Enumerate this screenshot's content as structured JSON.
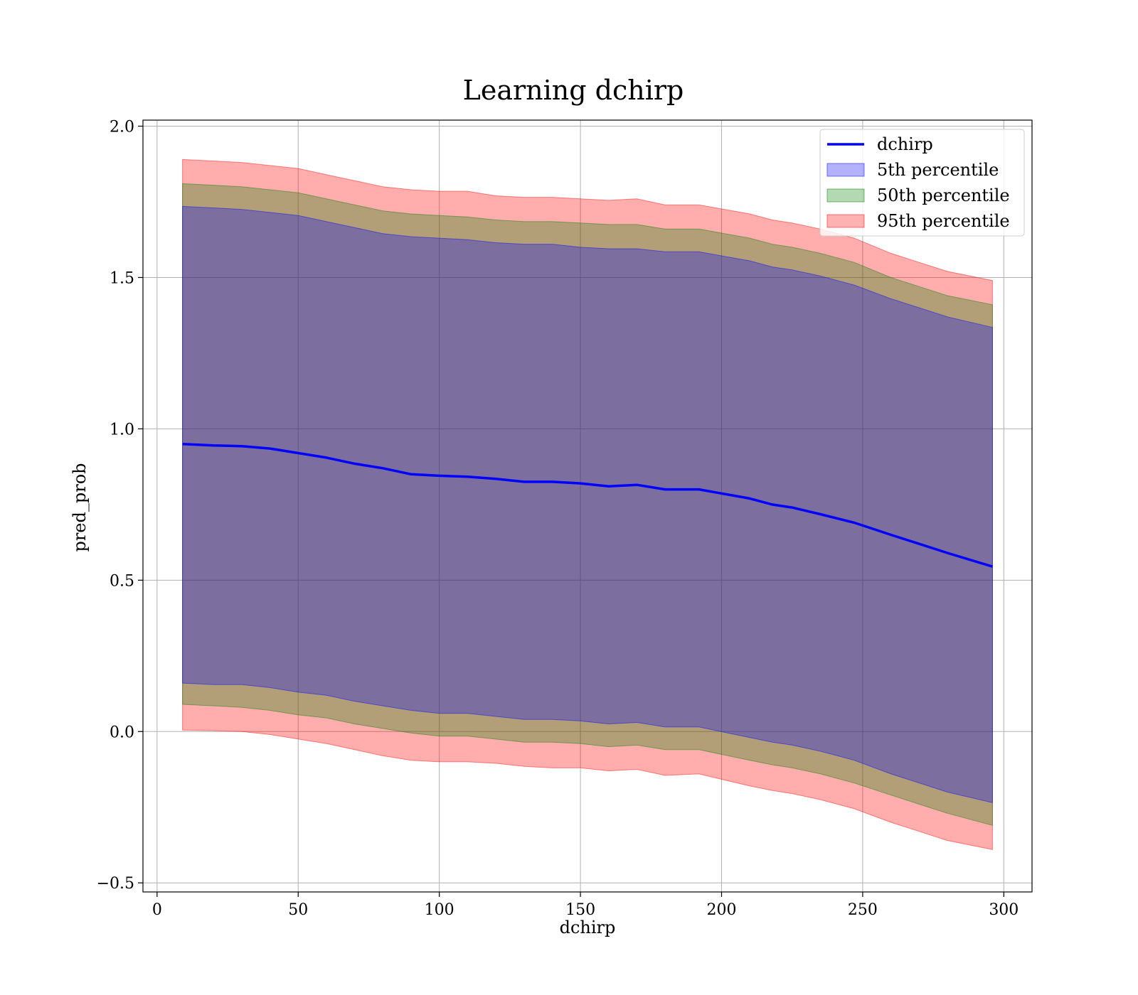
{
  "chart_data": {
    "type": "line",
    "title": "Learning dchirp",
    "xlabel": "dchirp",
    "ylabel": "pred_prob",
    "xlim": [
      -5,
      310
    ],
    "ylim": [
      -0.53,
      2.02
    ],
    "xticks": [
      0,
      50,
      100,
      150,
      200,
      250,
      300
    ],
    "xtick_labels": [
      "0",
      "50",
      "100",
      "150",
      "200",
      "250",
      "300"
    ],
    "yticks": [
      -0.5,
      0.0,
      0.5,
      1.0,
      1.5,
      2.0
    ],
    "ytick_labels": [
      "−0.5",
      "0.0",
      "0.5",
      "1.0",
      "1.5",
      "2.0"
    ],
    "grid": true,
    "legend_position": "top-right",
    "x": [
      9,
      20,
      30,
      40,
      50,
      60,
      70,
      80,
      90,
      100,
      110,
      120,
      130,
      140,
      150,
      160,
      170,
      180,
      192,
      210,
      218,
      225,
      235,
      247,
      260,
      270,
      280,
      296
    ],
    "line": {
      "name": "dchirp",
      "color": "#0000ff",
      "values": [
        0.95,
        0.945,
        0.943,
        0.935,
        0.92,
        0.905,
        0.885,
        0.87,
        0.85,
        0.845,
        0.842,
        0.835,
        0.825,
        0.825,
        0.82,
        0.81,
        0.815,
        0.8,
        0.8,
        0.77,
        0.75,
        0.74,
        0.718,
        0.69,
        0.65,
        0.62,
        0.59,
        0.545
      ]
    },
    "bands": [
      {
        "name": "95th percentile",
        "color": "#ff0000",
        "opacity": 0.32,
        "upper": [
          1.89,
          1.885,
          1.88,
          1.87,
          1.86,
          1.84,
          1.82,
          1.8,
          1.79,
          1.785,
          1.785,
          1.77,
          1.765,
          1.765,
          1.76,
          1.755,
          1.76,
          1.74,
          1.74,
          1.71,
          1.69,
          1.68,
          1.66,
          1.63,
          1.58,
          1.55,
          1.52,
          1.49
        ],
        "lower": [
          0.005,
          0.003,
          0.0,
          -0.01,
          -0.025,
          -0.04,
          -0.06,
          -0.08,
          -0.095,
          -0.1,
          -0.1,
          -0.105,
          -0.115,
          -0.12,
          -0.12,
          -0.13,
          -0.125,
          -0.145,
          -0.14,
          -0.18,
          -0.195,
          -0.205,
          -0.225,
          -0.255,
          -0.3,
          -0.33,
          -0.36,
          -0.39
        ]
      },
      {
        "name": "50th percentile",
        "color": "#008000",
        "opacity": 0.3,
        "upper": [
          1.81,
          1.805,
          1.8,
          1.79,
          1.78,
          1.76,
          1.74,
          1.72,
          1.71,
          1.705,
          1.7,
          1.69,
          1.685,
          1.685,
          1.68,
          1.675,
          1.675,
          1.66,
          1.66,
          1.63,
          1.61,
          1.6,
          1.58,
          1.55,
          1.5,
          1.47,
          1.44,
          1.41
        ],
        "lower": [
          0.09,
          0.085,
          0.08,
          0.07,
          0.055,
          0.045,
          0.025,
          0.01,
          -0.005,
          -0.015,
          -0.015,
          -0.025,
          -0.035,
          -0.035,
          -0.04,
          -0.05,
          -0.045,
          -0.06,
          -0.06,
          -0.095,
          -0.11,
          -0.12,
          -0.14,
          -0.17,
          -0.21,
          -0.24,
          -0.27,
          -0.31
        ]
      },
      {
        "name": "5th percentile",
        "color": "#0000ff",
        "opacity": 0.3,
        "upper": [
          1.735,
          1.73,
          1.725,
          1.715,
          1.705,
          1.685,
          1.665,
          1.645,
          1.635,
          1.63,
          1.625,
          1.615,
          1.61,
          1.61,
          1.6,
          1.595,
          1.595,
          1.585,
          1.585,
          1.555,
          1.535,
          1.525,
          1.505,
          1.475,
          1.43,
          1.4,
          1.37,
          1.335
        ],
        "lower": [
          0.16,
          0.155,
          0.155,
          0.145,
          0.13,
          0.12,
          0.1,
          0.085,
          0.07,
          0.06,
          0.06,
          0.05,
          0.04,
          0.04,
          0.035,
          0.025,
          0.03,
          0.015,
          0.015,
          -0.02,
          -0.035,
          -0.045,
          -0.065,
          -0.095,
          -0.14,
          -0.17,
          -0.2,
          -0.235
        ]
      }
    ],
    "legend": [
      {
        "label": "dchirp",
        "kind": "line",
        "color": "#0000ff"
      },
      {
        "label": "5th percentile",
        "kind": "patch",
        "color": "#0000ff"
      },
      {
        "label": "50th percentile",
        "kind": "patch",
        "color": "#008000"
      },
      {
        "label": "95th percentile",
        "kind": "patch",
        "color": "#ff0000"
      }
    ]
  }
}
